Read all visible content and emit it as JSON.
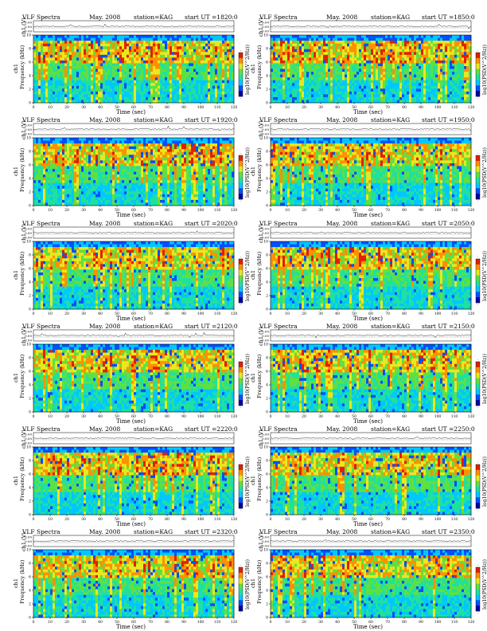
{
  "labels": {
    "title": "VLF Spectra",
    "date": "May. 2008",
    "station": "station=KAG",
    "channel_ylabel": "ch1 (V)",
    "freq_ylabel": "Frequency (kHz)",
    "channel_tag": "ch1",
    "xlabel": "Time (sec)",
    "colorbar_label": "log10(PSD(V^2/Hz))"
  },
  "chart_data": {
    "type": "heatmap",
    "xlabel": "Time (sec)",
    "ylabel": "Frequency (kHz)",
    "x_range": [
      0,
      120
    ],
    "y_range": [
      0,
      10
    ],
    "x_ticks": [
      "0",
      "10",
      "20",
      "30",
      "40",
      "50",
      "60",
      "70",
      "80",
      "90",
      "100",
      "110",
      "120"
    ],
    "y_ticks": [
      "0",
      "2",
      "4",
      "6",
      "8",
      "10"
    ],
    "ch_ticks": [
      "0.00",
      "0.00",
      "0.00"
    ],
    "colorbar_ticks": [
      "-",
      "-"
    ],
    "colorscale": [
      "#0000a0",
      "#0050ff",
      "#00c8ff",
      "#20e0a0",
      "#60e040",
      "#e8e820",
      "#ff9000",
      "#e02000"
    ],
    "panels": [
      {
        "start": "start UT =1820:0"
      },
      {
        "start": "start UT =1850:0"
      },
      {
        "start": "start UT =1920:0"
      },
      {
        "start": "start UT =1950:0"
      },
      {
        "start": "start UT =2020:0"
      },
      {
        "start": "start UT =2050:0"
      },
      {
        "start": "start UT =2120:0"
      },
      {
        "start": "start UT =2150:0"
      },
      {
        "start": "start UT =2220:0"
      },
      {
        "start": "start UT =2250:0"
      },
      {
        "start": "start UT =2320:0"
      },
      {
        "start": "start UT =2350:0"
      }
    ]
  }
}
